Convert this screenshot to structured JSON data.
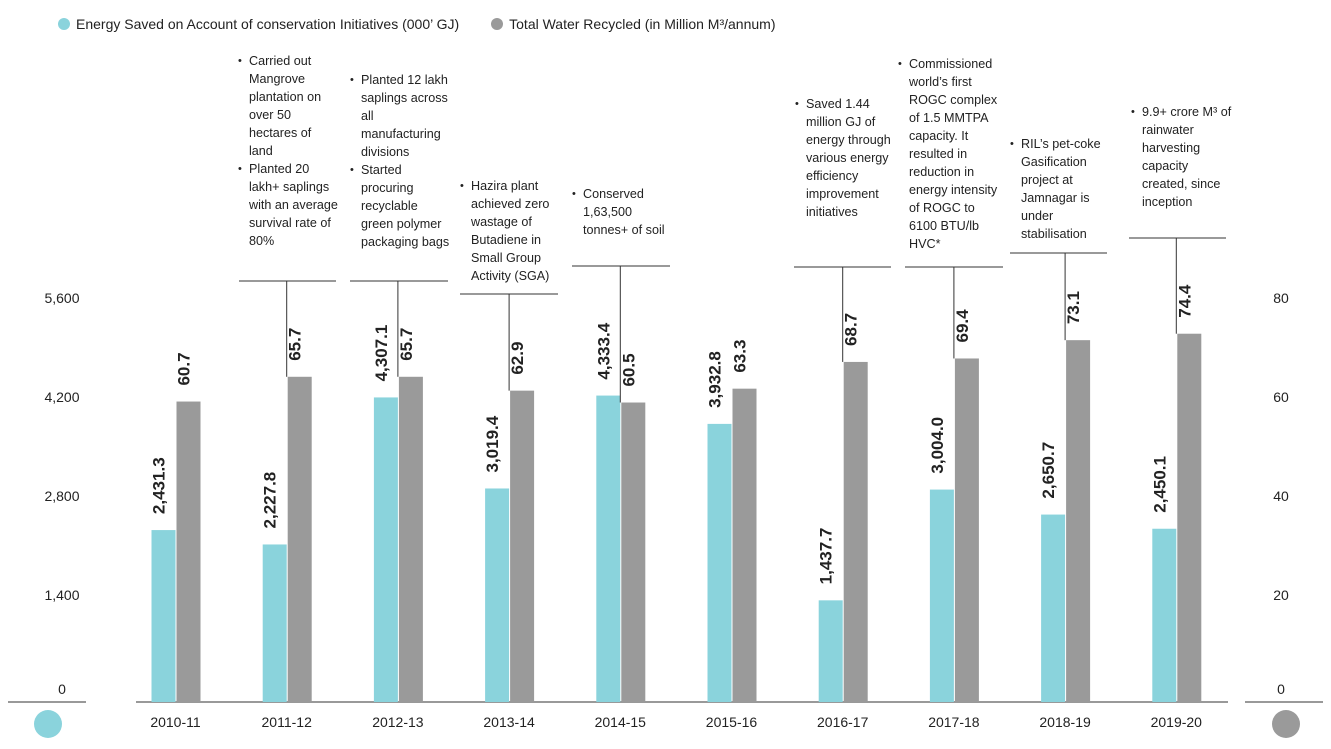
{
  "legend": [
    {
      "label": "Energy Saved on Account of conservation Initiatives (000’ GJ)",
      "color": "#8ad3dc",
      "icon": "circle"
    },
    {
      "label": "Total Water Recycled (in Million M³/annum)",
      "color": "#9a9a9a",
      "icon": "circle"
    }
  ],
  "chart_data": {
    "type": "bar",
    "categories": [
      "2010-11",
      "2011-12",
      "2012-13",
      "2013-14",
      "2014-15",
      "2015-16",
      "2016-17",
      "2017-18",
      "2018-19",
      "2019-20"
    ],
    "series": [
      {
        "name": "Energy Saved on Account of conservation Initiatives (000’ GJ)",
        "axis": "left",
        "color": "#8ad3dc",
        "values": [
          2431.3,
          2227.8,
          4307.1,
          3019.4,
          4333.4,
          3932.8,
          1437.7,
          3004.0,
          2650.7,
          2450.1
        ],
        "labels": [
          "2,431.3",
          "2,227.8",
          "4,307.1",
          "3,019.4",
          "4,333.4",
          "3,932.8",
          "1,437.7",
          "3,004.0",
          "2,650.7",
          "2,450.1"
        ]
      },
      {
        "name": "Total Water Recycled (in Million M³/annum)",
        "axis": "right",
        "color": "#9a9a9a",
        "values": [
          60.7,
          65.7,
          65.7,
          62.9,
          60.5,
          63.3,
          68.7,
          69.4,
          73.1,
          74.4
        ],
        "labels": [
          "60.7",
          "65.7",
          "65.7",
          "62.9",
          "60.5",
          "63.3",
          "68.7",
          "69.4",
          "73.1",
          "74.4"
        ]
      }
    ],
    "y_left": {
      "ticks": [
        0,
        1400,
        2800,
        4200,
        5600
      ],
      "tick_labels": [
        "0",
        "1,400",
        "2,800",
        "4,200",
        "5,600"
      ],
      "range": [
        0,
        5600
      ]
    },
    "y_right": {
      "ticks": [
        0,
        20,
        40,
        60,
        80
      ],
      "tick_labels": [
        "0",
        "20",
        "40",
        "60",
        "80"
      ],
      "range": [
        0,
        80
      ]
    },
    "grid": false,
    "legend_position": "top-left",
    "annotations": [
      {
        "category": "2011-12",
        "bullets": [
          "Carried out Mangrove plantation on over 50 hectares of land",
          "Planted 20 lakh+ saplings with an average survival rate of 80%"
        ]
      },
      {
        "category": "2012-13",
        "bullets": [
          "Planted 12 lakh saplings across all manufacturing divisions",
          "Started procuring recyclable green polymer packaging bags"
        ]
      },
      {
        "category": "2013-14",
        "bullets": [
          "Hazira plant achieved zero wastage of Butadiene in Small Group Activity (SGA)"
        ]
      },
      {
        "category": "2014-15",
        "bullets": [
          "Conserved 1,63,500 tonnes+ of soil"
        ]
      },
      {
        "category": "2016-17",
        "bullets": [
          "Saved 1.44 million GJ of energy through various energy efficiency improvement initiatives"
        ]
      },
      {
        "category": "2017-18",
        "bullets": [
          "Commissioned world’s first ROGC complex of 1.5 MMTPA capacity. It resulted in reduction in energy intensity of ROGC to 6100 BTU/lb HVC*"
        ]
      },
      {
        "category": "2018-19",
        "bullets": [
          "RIL’s pet-coke Gasification project at Jamnagar is under stabilisation"
        ]
      },
      {
        "category": "2019-20",
        "bullets": [
          "9.9+ crore M³ of rainwater harvesting capacity created, since inception"
        ]
      }
    ]
  }
}
